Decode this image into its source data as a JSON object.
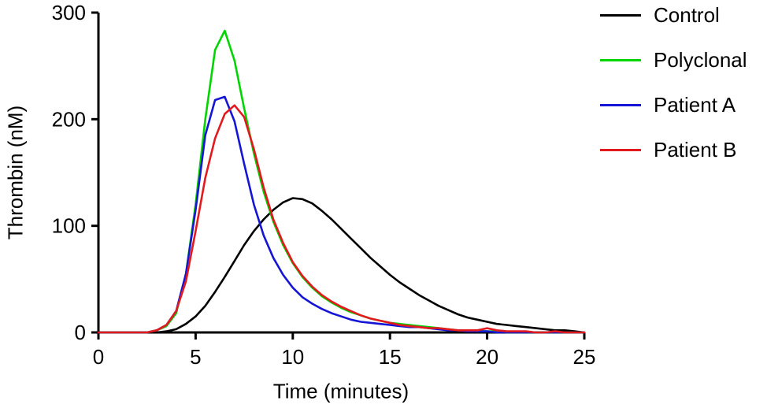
{
  "chart_data": {
    "type": "line",
    "title": "",
    "xlabel": "Time (minutes)",
    "ylabel": "Thrombin (nM)",
    "xlim": [
      0,
      25
    ],
    "ylim": [
      0,
      300
    ],
    "x_ticks": [
      0,
      5,
      10,
      15,
      20,
      25
    ],
    "y_ticks": [
      0,
      100,
      200,
      300
    ],
    "grid": false,
    "legend_position": "top-right",
    "x": [
      0,
      0.5,
      1,
      1.5,
      2,
      2.5,
      3,
      3.5,
      4,
      4.5,
      5,
      5.5,
      6,
      6.5,
      7,
      7.5,
      8,
      8.5,
      9,
      9.5,
      10,
      10.5,
      11,
      11.5,
      12,
      12.5,
      13,
      13.5,
      14,
      14.5,
      15,
      15.5,
      16,
      16.5,
      17,
      17.5,
      18,
      18.5,
      19,
      19.5,
      20,
      20.5,
      21,
      21.5,
      22,
      22.5,
      23,
      23.5,
      24,
      24.5,
      25
    ],
    "series": [
      {
        "name": "Control",
        "color": "#000000",
        "values": [
          0,
          0,
          0,
          0,
          0,
          0,
          0,
          1,
          3,
          8,
          15,
          25,
          38,
          52,
          67,
          82,
          95,
          106,
          115,
          122,
          126,
          125,
          121,
          114,
          106,
          97,
          88,
          79,
          70,
          62,
          54,
          47,
          41,
          35,
          30,
          25,
          21,
          17,
          14,
          12,
          10,
          8,
          7,
          6,
          5,
          4,
          3,
          2,
          2,
          1,
          0
        ]
      },
      {
        "name": "Polyclonal",
        "color": "#00D500",
        "values": [
          0,
          0,
          0,
          0,
          0,
          0,
          2,
          6,
          18,
          55,
          120,
          200,
          265,
          283,
          255,
          210,
          168,
          132,
          104,
          82,
          65,
          52,
          42,
          34,
          28,
          23,
          19,
          16,
          13,
          11,
          9,
          8,
          7,
          6,
          5,
          4,
          3,
          2,
          2,
          1,
          1,
          1,
          0,
          0,
          0,
          0,
          0,
          0,
          0,
          0,
          0
        ]
      },
      {
        "name": "Patient A",
        "color": "#1515D6",
        "values": [
          0,
          0,
          0,
          0,
          0,
          0,
          2,
          7,
          20,
          55,
          115,
          185,
          218,
          221,
          198,
          158,
          120,
          91,
          70,
          54,
          42,
          33,
          27,
          22,
          18,
          15,
          12,
          10,
          9,
          8,
          7,
          6,
          5,
          5,
          4,
          3,
          2,
          2,
          1,
          1,
          1,
          0,
          0,
          0,
          0,
          0,
          0,
          0,
          0,
          0,
          0
        ]
      },
      {
        "name": "Patient B",
        "color": "#E21A1E",
        "values": [
          0,
          0,
          0,
          0,
          0,
          0,
          2,
          7,
          20,
          48,
          95,
          145,
          182,
          205,
          213,
          202,
          172,
          136,
          106,
          84,
          66,
          53,
          43,
          35,
          29,
          24,
          20,
          16,
          13,
          11,
          9,
          7,
          6,
          5,
          4,
          4,
          3,
          2,
          2,
          2,
          4,
          2,
          1,
          1,
          1,
          0,
          0,
          1,
          0,
          0,
          0
        ]
      }
    ]
  }
}
